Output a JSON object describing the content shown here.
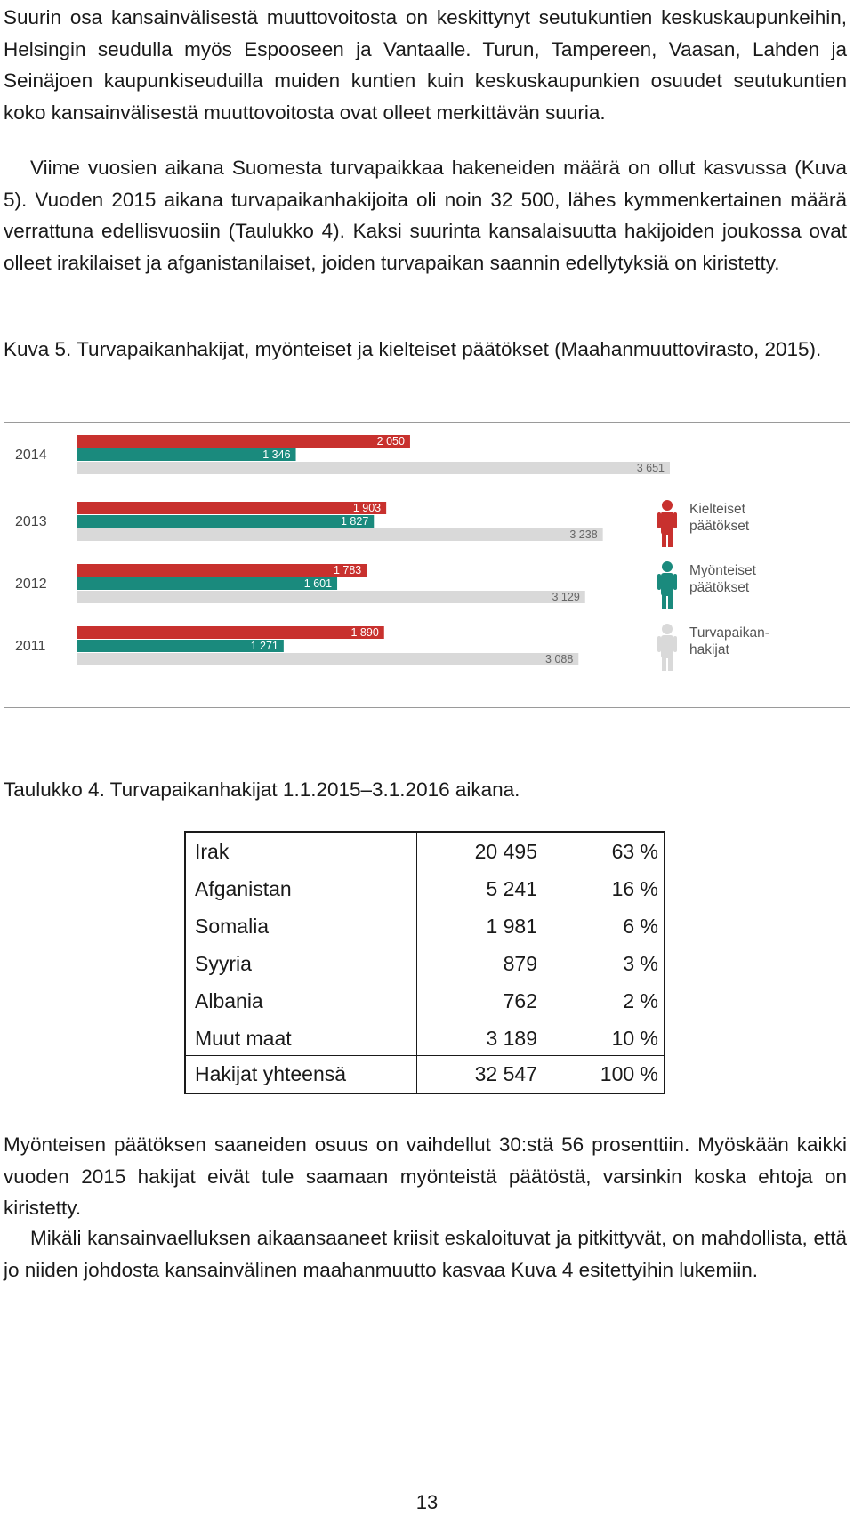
{
  "paragraphs": {
    "p1": "Suurin osa kansainvälisestä muuttovoitosta on keskittynyt seutukuntien keskuskaupunkeihin, Helsingin seudulla myös Espooseen ja Vantaalle. Turun, Tampereen, Vaasan, Lahden ja Seinäjoen kaupunkiseuduilla muiden kuntien kuin keskuskaupunkien osuudet seutukuntien koko kansainvälisestä muuttovoitosta ovat olleet merkittävän suuria.",
    "p2": "Viime vuosien aikana Suomesta turvapaikkaa hakeneiden määrä on ollut kasvussa (Kuva 5). Vuoden 2015 aikana turvapaikanhakijoita oli noin 32 500, lähes kymmenkertainen määrä verrattuna edellisvuosiin (Taulukko 4). Kaksi suurinta kansalaisuutta hakijoiden joukossa ovat olleet irakilaiset ja afganistanilaiset, joiden turvapaikan saannin edellytyksiä on kiristetty.",
    "p3": "Myönteisen päätöksen saaneiden osuus on vaihdellut 30:stä 56 prosenttiin. Myöskään kaikki vuoden 2015 hakijat eivät tule saamaan myönteistä päätöstä, varsinkin koska ehtoja on kiristetty.",
    "p4": "Mikäli kansainvaelluksen aikaansaaneet kriisit eskaloituvat ja pitkittyvät, on mahdollista, että jo niiden johdosta kansainvälinen maahanmuutto kasvaa Kuva 4 esitettyihin lukemiin."
  },
  "figure_caption": "Kuva 5. Turvapaikanhakijat, myönteiset ja kielteiset päätökset (Maahanmuuttovirasto, 2015).",
  "table_caption": "Taulukko 4. Turvapaikanhakijat 1.1.2015–3.1.2016 aikana.",
  "table": {
    "rows": [
      {
        "country": "Irak",
        "count": "20 495",
        "percent": "63 %"
      },
      {
        "country": "Afganistan",
        "count": "5 241",
        "percent": "16 %"
      },
      {
        "country": "Somalia",
        "count": "1 981",
        "percent": "6 %"
      },
      {
        "country": "Syyria",
        "count": "879",
        "percent": "3 %"
      },
      {
        "country": "Albania",
        "count": "762",
        "percent": "2 %"
      },
      {
        "country": "Muut maat",
        "count": "3 189",
        "percent": "10 %"
      }
    ],
    "total": {
      "country": "Hakijat yhteensä",
      "count": "32 547",
      "percent": "100 %"
    }
  },
  "page_number": "13",
  "chart_data": {
    "type": "bar",
    "orientation": "horizontal",
    "categories": [
      "2014",
      "2013",
      "2012",
      "2011"
    ],
    "series": [
      {
        "name": "Kielteiset päätökset",
        "color": "#c8312e",
        "icon": "person-icon",
        "values": [
          2050,
          1903,
          1783,
          1890
        ],
        "labels": [
          "2 050",
          "1 903",
          "1 783",
          "1 890"
        ]
      },
      {
        "name": "Myönteiset päätökset",
        "color": "#1a8a7d",
        "icon": "person-icon",
        "values": [
          1346,
          1827,
          1601,
          1271
        ],
        "labels": [
          "1 346",
          "1 827",
          "1 601",
          "1 271"
        ]
      },
      {
        "name": "Turvapaikanhakijat",
        "color": "#d9d9d9",
        "icon": "person-icon",
        "values": [
          3651,
          3238,
          3129,
          3088
        ],
        "labels": [
          "3 651",
          "3 238",
          "3 129",
          "3 088"
        ]
      }
    ],
    "legend": [
      {
        "line1": "Kielteiset",
        "line2": "päätökset",
        "color": "#c8312e"
      },
      {
        "line1": "Myönteiset",
        "line2": "päätökset",
        "color": "#1a8a7d"
      },
      {
        "line1": "Turvapaikan-",
        "line2": "hakijat",
        "color": "#d9d9d9"
      }
    ],
    "legend_position": "right",
    "xlim": [
      0,
      3651
    ],
    "grid": false
  }
}
